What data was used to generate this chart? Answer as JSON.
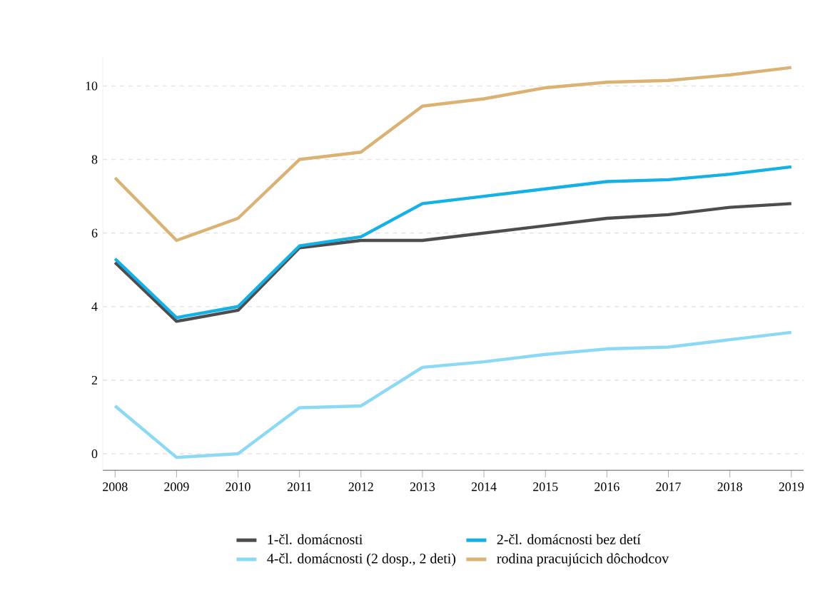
{
  "chart_data": {
    "type": "line",
    "x": [
      2008,
      2009,
      2010,
      2011,
      2012,
      2013,
      2014,
      2015,
      2016,
      2017,
      2018,
      2019
    ],
    "series": [
      {
        "name": "1-čl. domácnosti",
        "color": "#4d4d4f",
        "values": [
          5.2,
          3.6,
          3.9,
          5.6,
          5.8,
          5.8,
          6.0,
          6.2,
          6.4,
          6.5,
          6.7,
          6.8
        ]
      },
      {
        "name": "2-čl. domácnosti bez detí",
        "color": "#13b1e6",
        "values": [
          5.3,
          3.7,
          4.0,
          5.65,
          5.9,
          6.8,
          7.0,
          7.2,
          7.4,
          7.45,
          7.6,
          7.8
        ]
      },
      {
        "name": "4-čl. domácnosti (2 dosp., 2 deti)",
        "color": "#8cd9f5",
        "values": [
          1.3,
          -0.1,
          0.0,
          1.25,
          1.3,
          2.35,
          2.5,
          2.7,
          2.85,
          2.9,
          3.1,
          3.3
        ]
      },
      {
        "name": "rodina pracujúcich dôchodcov",
        "color": "#dab274",
        "values": [
          7.5,
          5.8,
          6.4,
          8.0,
          8.2,
          9.45,
          9.65,
          9.95,
          10.1,
          10.15,
          10.3,
          10.5
        ]
      }
    ],
    "xlim": [
      2007.8,
      2019.2
    ],
    "ylim": [
      -0.45,
      10.8
    ],
    "xticks": [
      2008,
      2009,
      2010,
      2011,
      2012,
      2013,
      2014,
      2015,
      2016,
      2017,
      2018,
      2019
    ],
    "yticks": [
      0,
      2,
      4,
      6,
      8,
      10
    ],
    "grid": "y",
    "legend": "bottom",
    "marker": "none",
    "line_style": "solid"
  }
}
